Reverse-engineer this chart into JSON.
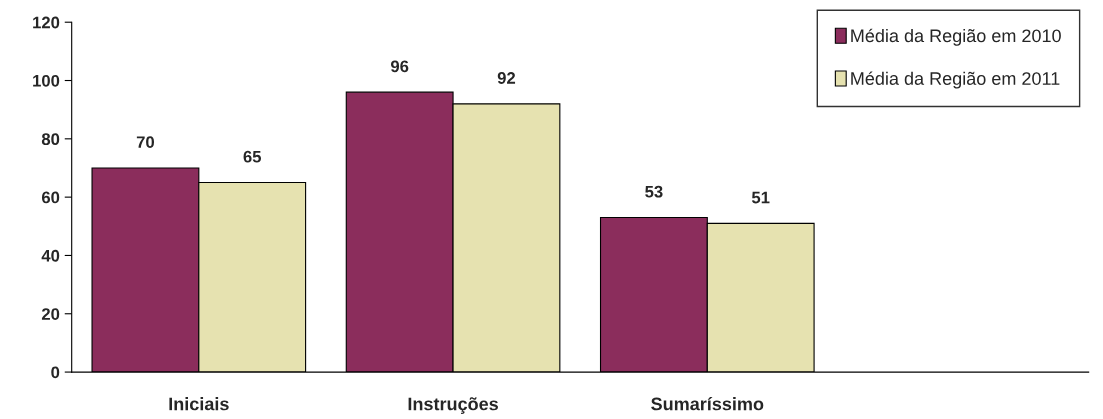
{
  "chart_data": {
    "type": "bar",
    "categories": [
      "Iniciais",
      "Instruções",
      "Sumaríssimo",
      null
    ],
    "series": [
      {
        "name": "Média da Região em 2010",
        "color": "#8b2d5c",
        "values": [
          70,
          96,
          53,
          null
        ]
      },
      {
        "name": "Média da Região em 2011",
        "color": "#e6e2b0",
        "values": [
          65,
          92,
          51,
          null
        ]
      }
    ],
    "ylim": [
      0,
      120
    ],
    "yticks": [
      0,
      20,
      40,
      60,
      80,
      100,
      120
    ],
    "data_labels": true,
    "grid": false,
    "legend": "top right"
  }
}
